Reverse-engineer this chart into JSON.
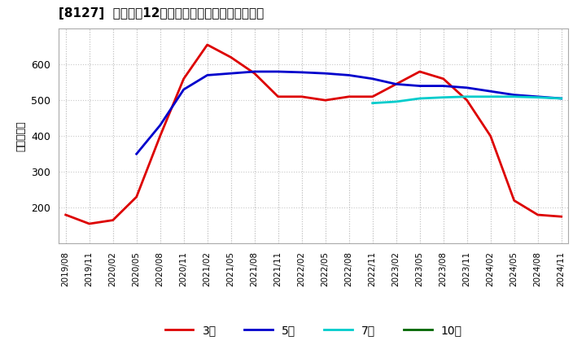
{
  "title": "[8127]  経常利益12か月移動合計の標準偏差の推移",
  "ylabel": "（百万円）",
  "background_color": "#ffffff",
  "grid_color": "#c8c8c8",
  "x_labels": [
    "2019/08",
    "2019/11",
    "2020/02",
    "2020/05",
    "2020/08",
    "2020/11",
    "2021/02",
    "2021/05",
    "2021/08",
    "2021/11",
    "2022/02",
    "2022/05",
    "2022/08",
    "2022/11",
    "2023/02",
    "2023/05",
    "2023/08",
    "2023/11",
    "2024/02",
    "2024/05",
    "2024/08",
    "2024/11"
  ],
  "series_3y": {
    "label": "3年",
    "color": "#dd0000",
    "data_x": [
      0,
      1,
      2,
      3,
      4,
      5,
      6,
      7,
      8,
      9,
      10,
      11,
      12,
      13,
      14,
      15,
      16,
      17,
      18,
      19,
      20,
      21
    ],
    "data_y": [
      180,
      155,
      165,
      230,
      400,
      560,
      655,
      620,
      575,
      510,
      510,
      500,
      510,
      510,
      545,
      580,
      560,
      500,
      400,
      220,
      180,
      175
    ]
  },
  "series_5y": {
    "label": "5年",
    "color": "#0000cc",
    "data_x": [
      3,
      4,
      5,
      6,
      7,
      8,
      9,
      10,
      11,
      12,
      13,
      14,
      15,
      16,
      17,
      18,
      19,
      20,
      21
    ],
    "data_y": [
      350,
      430,
      530,
      570,
      575,
      580,
      580,
      578,
      575,
      570,
      560,
      545,
      540,
      540,
      535,
      525,
      515,
      510,
      505
    ]
  },
  "series_7y": {
    "label": "7年",
    "color": "#00cccc",
    "data_x": [
      13,
      14,
      15,
      16,
      17,
      18,
      19,
      20,
      21
    ],
    "data_y": [
      492,
      496,
      505,
      508,
      510,
      510,
      510,
      508,
      505
    ]
  },
  "series_10y": {
    "label": "10年",
    "color": "#006600",
    "data_x": [],
    "data_y": []
  },
  "ylim": [
    100,
    700
  ],
  "yticks": [
    200,
    300,
    400,
    500,
    600
  ],
  "linewidth": 2.0
}
